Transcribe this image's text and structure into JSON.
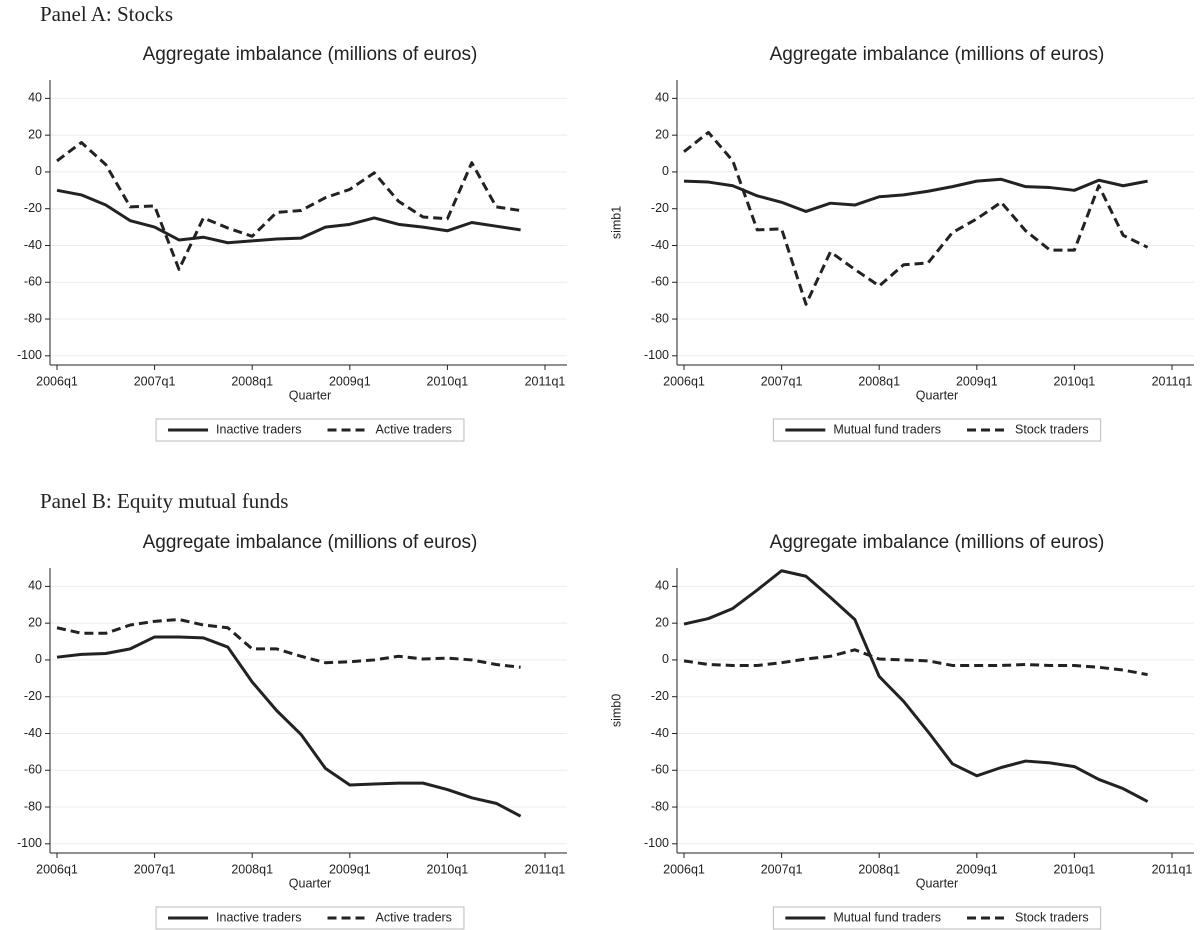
{
  "panel_labels": [
    "Panel A: Stocks",
    "Panel B: Equity mutual funds"
  ],
  "chart_data": [
    {
      "type": "line",
      "title": "Aggregate imbalance (millions of euros)",
      "x_label": "Quarter",
      "x": [
        "2006q1",
        "2006q2",
        "2006q3",
        "2006q4",
        "2007q1",
        "2007q2",
        "2007q3",
        "2007q4",
        "2008q1",
        "2008q2",
        "2008q3",
        "2008q4",
        "2009q1",
        "2009q2",
        "2009q3",
        "2009q4",
        "2010q1",
        "2010q2",
        "2010q3",
        "2010q4"
      ],
      "xlim": [
        "2006q1",
        "2011q1"
      ],
      "xticks": [
        "2006q1",
        "2007q1",
        "2008q1",
        "2009q1",
        "2010q1",
        "2011q1"
      ],
      "ylim": [
        -105,
        50
      ],
      "yticks": [
        -100,
        -80,
        -60,
        -40,
        -20,
        0,
        20,
        40
      ],
      "grid": true,
      "series": [
        {
          "name": "Inactive traders",
          "color": "#222222",
          "dash": false,
          "values": [
            -10,
            -12.5,
            -18,
            -26.5,
            -30,
            -37,
            -35.5,
            -38.5,
            -37.5,
            -36.5,
            -36,
            -30,
            -28.5,
            -25,
            -28.5,
            -30,
            -32,
            -27.5,
            -29.5,
            -31.5
          ]
        },
        {
          "name": "Active traders",
          "color": "#222222",
          "dash": true,
          "values": [
            6,
            16,
            4,
            -19,
            -18.5,
            -53,
            -25,
            -30.5,
            -35,
            -22,
            -21,
            -14,
            -9.5,
            -0.5,
            -16,
            -24.5,
            -25.5,
            5,
            -19,
            -21
          ]
        }
      ]
    },
    {
      "type": "line",
      "title": "Aggregate imbalance (millions of euros)",
      "x_label": "Quarter",
      "y_label": "simb1",
      "x": [
        "2006q1",
        "2006q2",
        "2006q3",
        "2006q4",
        "2007q1",
        "2007q2",
        "2007q3",
        "2007q4",
        "2008q1",
        "2008q2",
        "2008q3",
        "2008q4",
        "2009q1",
        "2009q2",
        "2009q3",
        "2009q4",
        "2010q1",
        "2010q2",
        "2010q3",
        "2010q4"
      ],
      "xlim": [
        "2006q1",
        "2011q1"
      ],
      "xticks": [
        "2006q1",
        "2007q1",
        "2008q1",
        "2009q1",
        "2010q1",
        "2011q1"
      ],
      "ylim": [
        -105,
        50
      ],
      "yticks": [
        -100,
        -80,
        -60,
        -40,
        -20,
        0,
        20,
        40
      ],
      "grid": true,
      "series": [
        {
          "name": "Mutual fund traders",
          "color": "#222222",
          "dash": false,
          "values": [
            -5,
            -5.5,
            -7.5,
            -13,
            -16.5,
            -21.5,
            -17,
            -18,
            -13.5,
            -12.5,
            -10.5,
            -8,
            -5,
            -4,
            -8,
            -8.5,
            -10,
            -4.5,
            -7.5,
            -5
          ]
        },
        {
          "name": "Stock traders",
          "color": "#222222",
          "dash": true,
          "values": [
            11,
            21.5,
            6,
            -31.5,
            -31,
            -72,
            -43.5,
            -53,
            -62,
            -50.5,
            -49.5,
            -33,
            -25.5,
            -16.5,
            -32,
            -42.5,
            -42.5,
            -7.5,
            -34.5,
            -41
          ]
        }
      ]
    },
    {
      "type": "line",
      "title": "Aggregate imbalance (millions of euros)",
      "x_label": "Quarter",
      "x": [
        "2006q1",
        "2006q2",
        "2006q3",
        "2006q4",
        "2007q1",
        "2007q2",
        "2007q3",
        "2007q4",
        "2008q1",
        "2008q2",
        "2008q3",
        "2008q4",
        "2009q1",
        "2009q2",
        "2009q3",
        "2009q4",
        "2010q1",
        "2010q2",
        "2010q3",
        "2010q4"
      ],
      "xlim": [
        "2006q1",
        "2011q1"
      ],
      "xticks": [
        "2006q1",
        "2007q1",
        "2008q1",
        "2009q1",
        "2010q1",
        "2011q1"
      ],
      "ylim": [
        -105,
        50
      ],
      "yticks": [
        -100,
        -80,
        -60,
        -40,
        -20,
        0,
        20,
        40
      ],
      "grid": true,
      "series": [
        {
          "name": "Inactive traders",
          "color": "#222222",
          "dash": false,
          "values": [
            1.5,
            3,
            3.5,
            6,
            12.5,
            12.5,
            12,
            7,
            -12,
            -27.5,
            -40.5,
            -59,
            -68,
            -67.5,
            -67,
            -67,
            -70.5,
            -75,
            -78,
            -85
          ]
        },
        {
          "name": "Active traders",
          "color": "#222222",
          "dash": true,
          "values": [
            17.5,
            14.5,
            14.5,
            19,
            21,
            22,
            19,
            17.5,
            6,
            6,
            2,
            -1.5,
            -1,
            0,
            2,
            0.5,
            1,
            0,
            -2.5,
            -4
          ]
        }
      ]
    },
    {
      "type": "line",
      "title": "Aggregate imbalance (millions of euros)",
      "x_label": "Quarter",
      "y_label": "simb0",
      "x": [
        "2006q1",
        "2006q2",
        "2006q3",
        "2006q4",
        "2007q1",
        "2007q2",
        "2007q3",
        "2007q4",
        "2008q1",
        "2008q2",
        "2008q3",
        "2008q4",
        "2009q1",
        "2009q2",
        "2009q3",
        "2009q4",
        "2010q1",
        "2010q2",
        "2010q3",
        "2010q4"
      ],
      "xlim": [
        "2006q1",
        "2011q1"
      ],
      "xticks": [
        "2006q1",
        "2007q1",
        "2008q1",
        "2009q1",
        "2010q1",
        "2011q1"
      ],
      "ylim": [
        -105,
        50
      ],
      "yticks": [
        -100,
        -80,
        -60,
        -40,
        -20,
        0,
        20,
        40
      ],
      "grid": true,
      "series": [
        {
          "name": "Mutual fund traders",
          "color": "#222222",
          "dash": false,
          "values": [
            19.5,
            22.5,
            28,
            38,
            48.5,
            45.5,
            34,
            22,
            -9,
            -22.5,
            -39,
            -56.5,
            -63,
            -58.5,
            -55,
            -56,
            -58,
            -65,
            -70,
            -77
          ]
        },
        {
          "name": "Stock traders",
          "color": "#222222",
          "dash": true,
          "values": [
            -0.5,
            -2.5,
            -3,
            -3,
            -1.5,
            0.5,
            2,
            5.5,
            0.5,
            0,
            -0.5,
            -3,
            -3,
            -3,
            -2.5,
            -3,
            -3,
            -4,
            -5.5,
            -8
          ]
        }
      ]
    }
  ]
}
